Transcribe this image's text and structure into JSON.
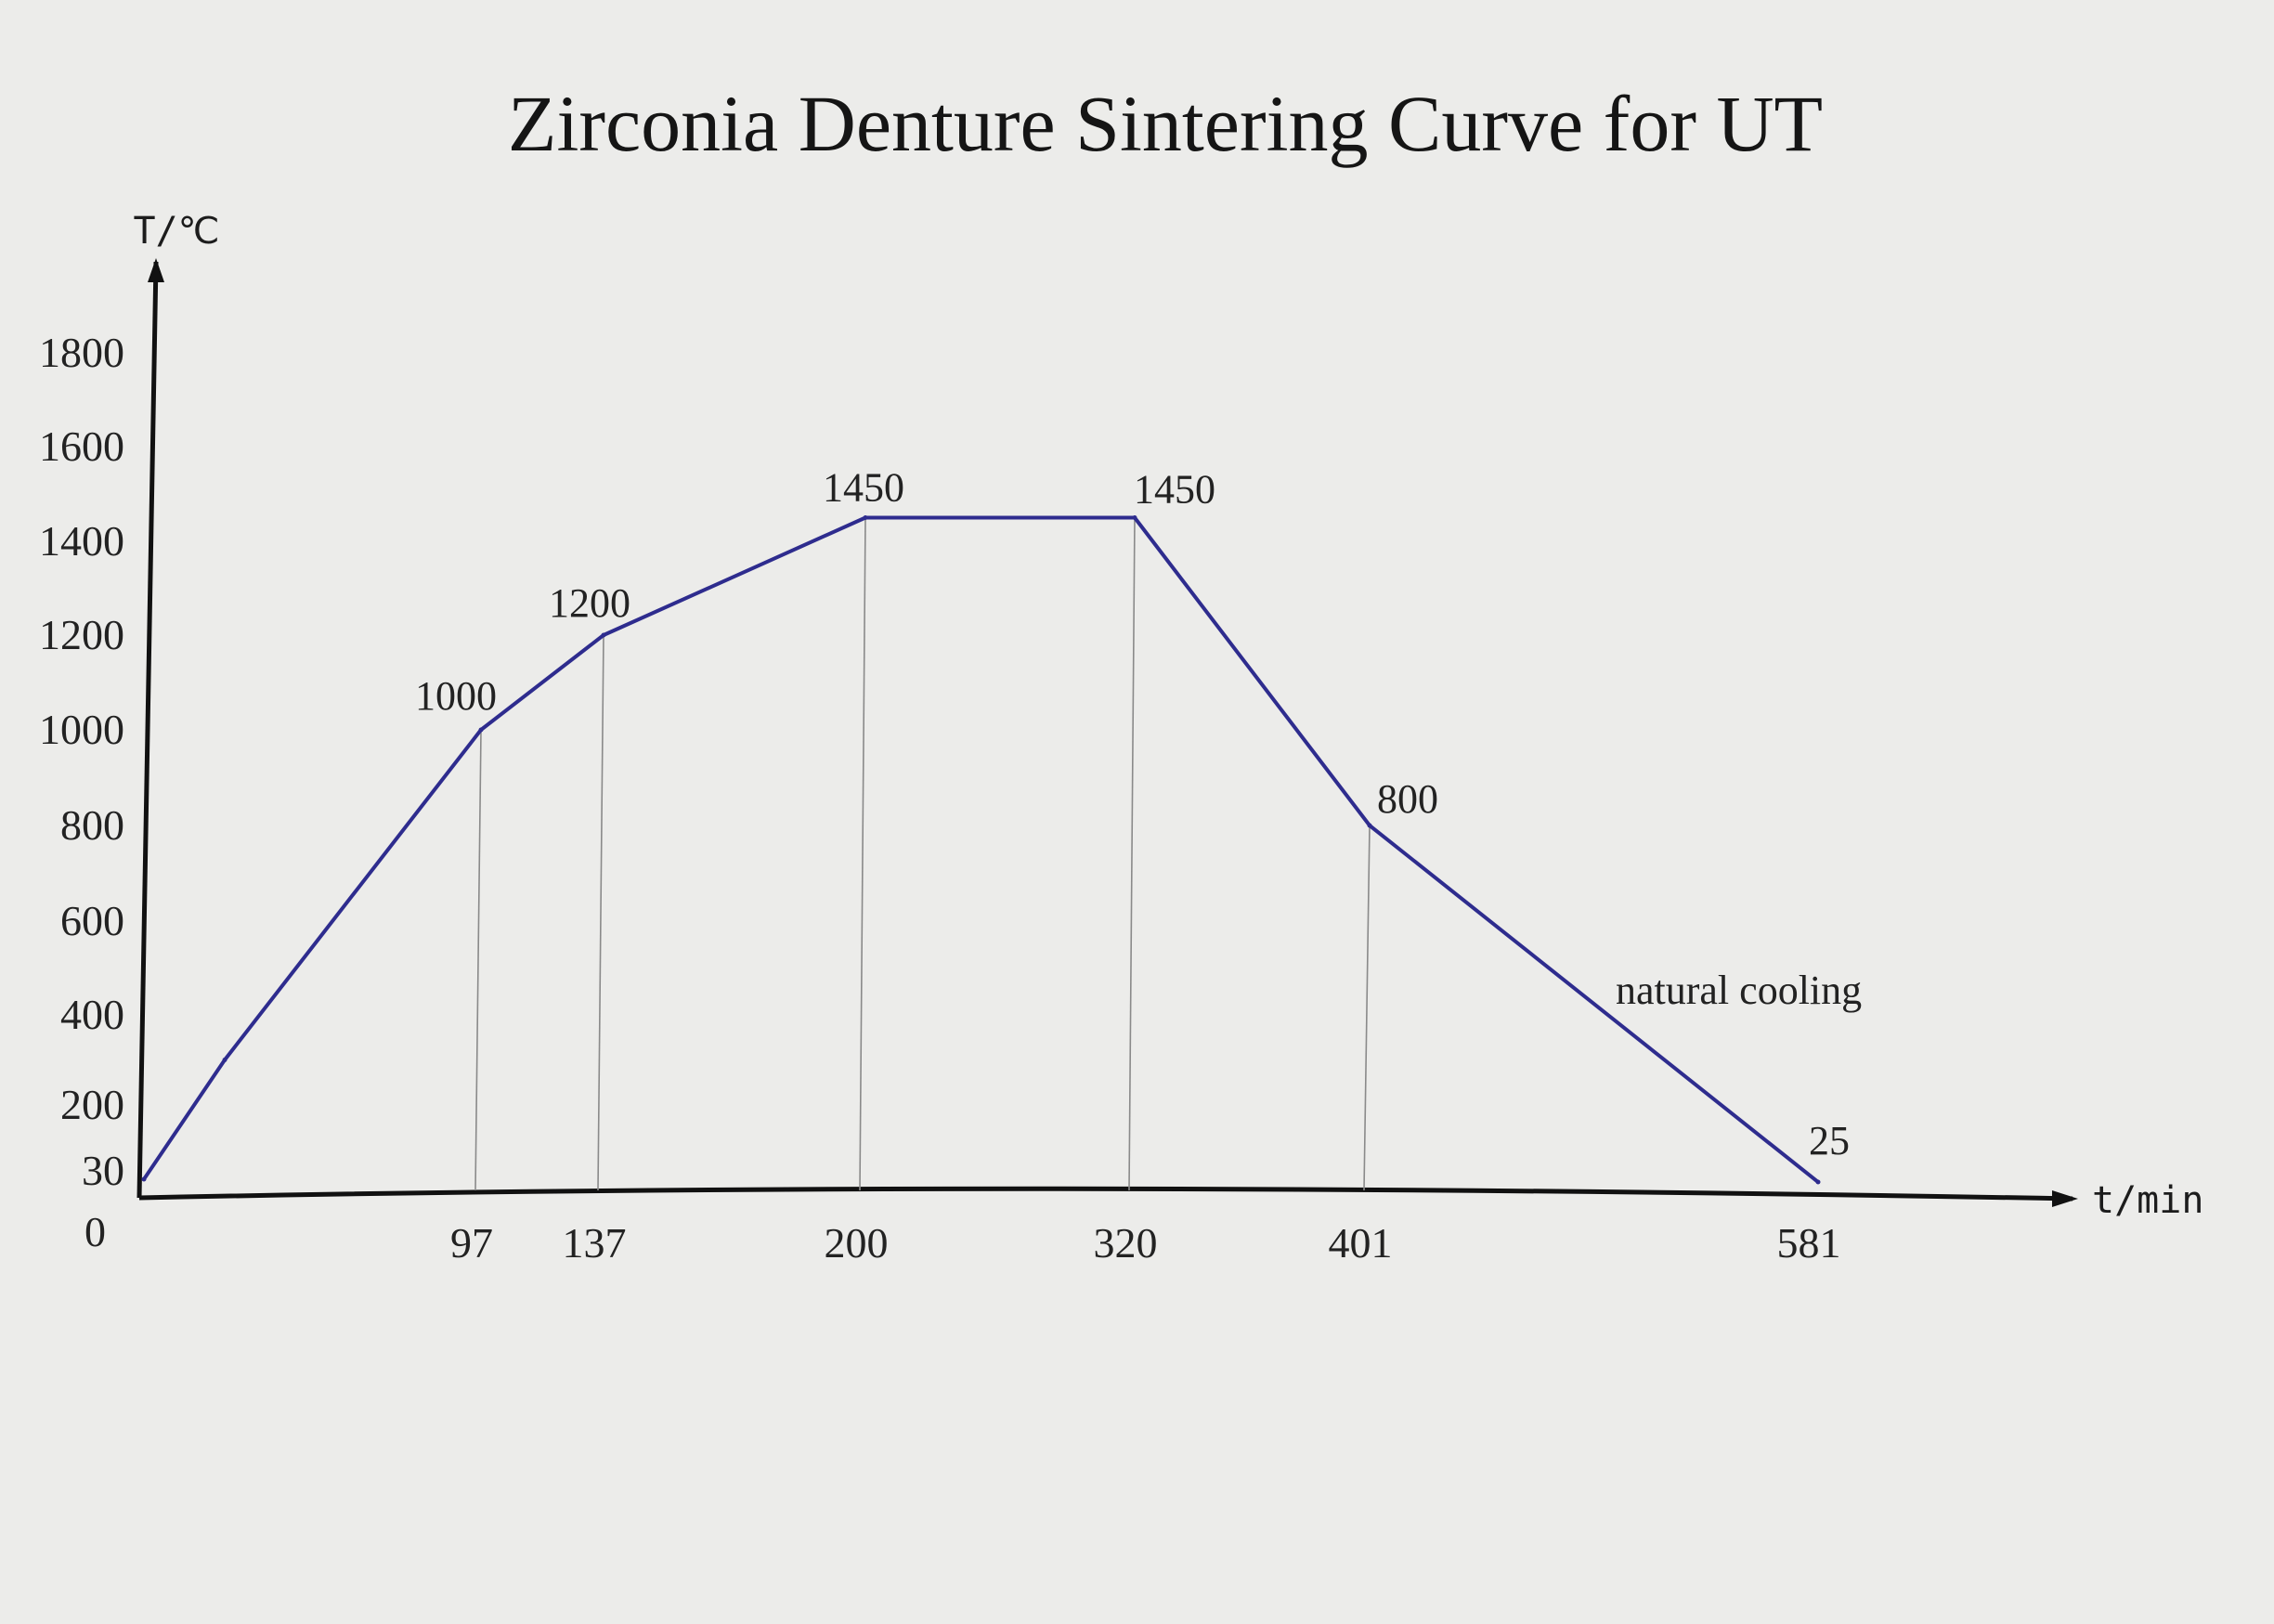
{
  "chart_data": {
    "type": "line",
    "title": "Zirconia Denture Sintering Curve for UT",
    "xlabel": "t/min",
    "ylabel": "T/℃",
    "ylim": [
      0,
      1800
    ],
    "y_ticks": [
      "0",
      "30",
      "200",
      "400",
      "600",
      "800",
      "1000",
      "1200",
      "1400",
      "1600",
      "1800"
    ],
    "x_ticks": [
      "97",
      "137",
      "200",
      "320",
      "401",
      "581"
    ],
    "grid": false,
    "series": [
      {
        "x": [
          0,
          25,
          97,
          137,
          200,
          320,
          401,
          581
        ],
        "y": [
          30,
          300,
          1000,
          1200,
          1450,
          1450,
          800,
          25
        ],
        "color": "#2e2c8e"
      }
    ],
    "point_labels": [
      {
        "x": 97,
        "y": 1000,
        "text": "1000"
      },
      {
        "x": 137,
        "y": 1200,
        "text": "1200"
      },
      {
        "x": 200,
        "y": 1450,
        "text": "1450"
      },
      {
        "x": 320,
        "y": 1450,
        "text": "1450"
      },
      {
        "x": 401,
        "y": 800,
        "text": "800"
      },
      {
        "x": 581,
        "y": 25,
        "text": "25"
      }
    ],
    "reference_lines_at_x": [
      97,
      137,
      200,
      320,
      401
    ],
    "annotations": [
      {
        "text": "natural cooling",
        "near_x": 491,
        "near_y": 420
      }
    ]
  }
}
